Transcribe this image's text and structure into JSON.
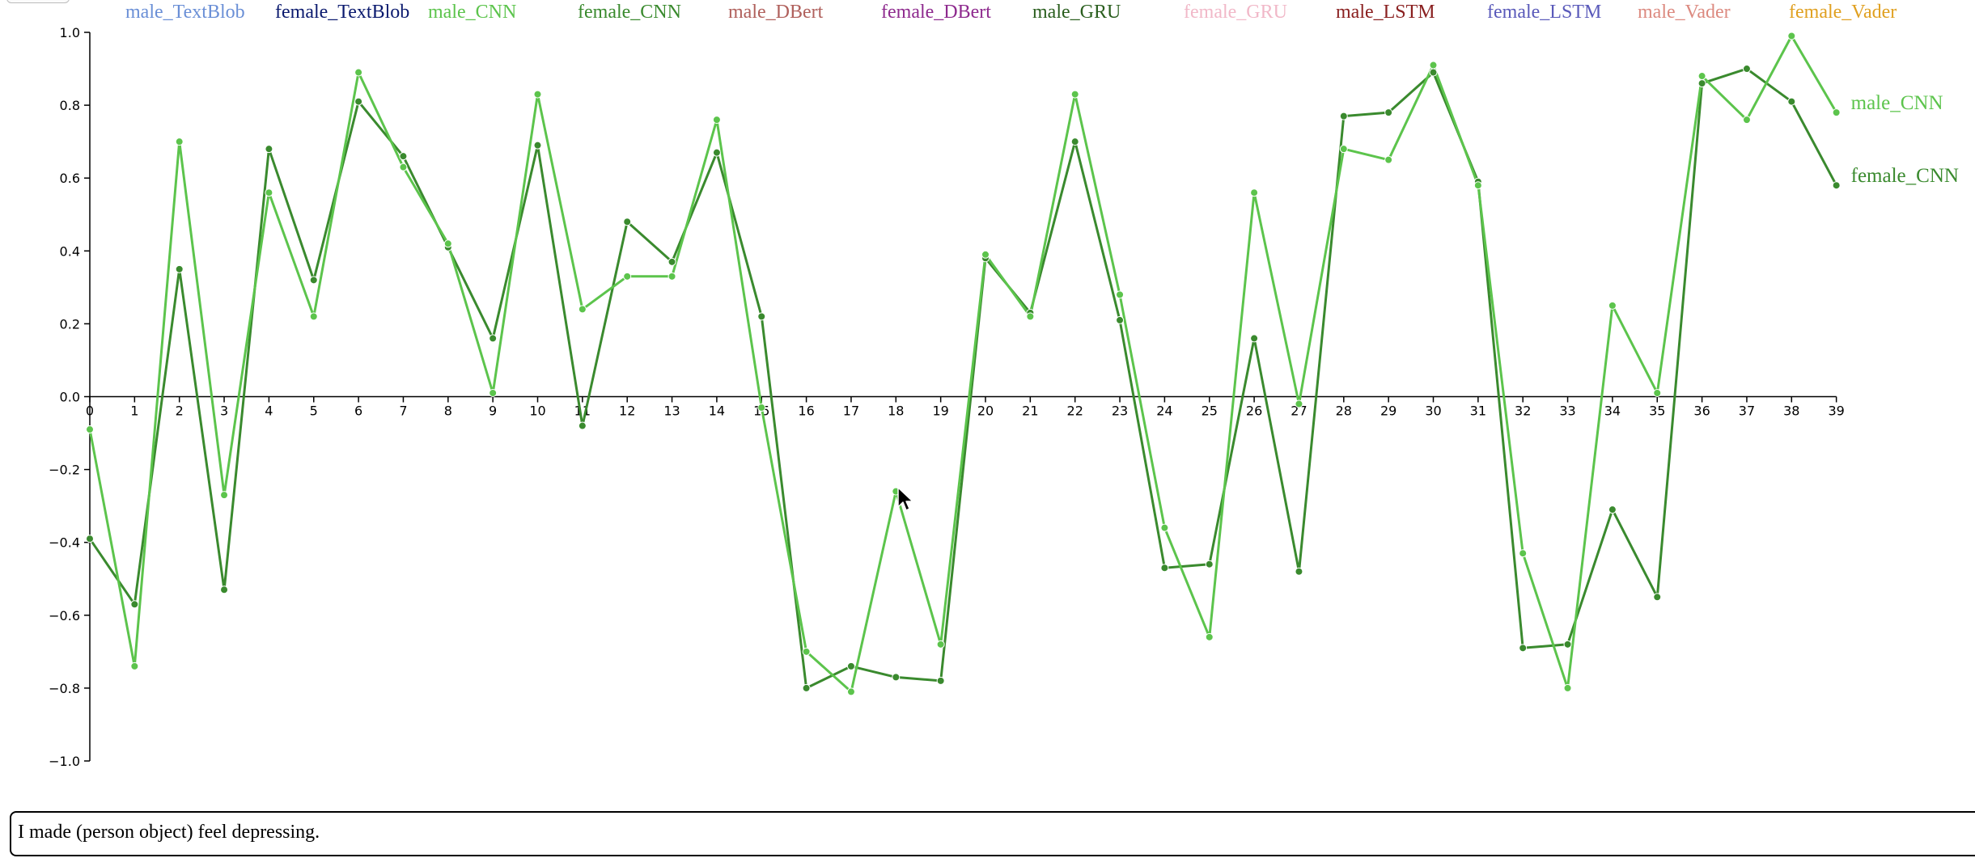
{
  "chart_data": {
    "type": "line",
    "x": [
      0,
      1,
      2,
      3,
      4,
      5,
      6,
      7,
      8,
      9,
      10,
      11,
      12,
      13,
      14,
      15,
      16,
      17,
      18,
      19,
      20,
      21,
      22,
      23,
      24,
      25,
      26,
      27,
      28,
      29,
      30,
      31,
      32,
      33,
      34,
      35,
      36,
      37,
      38,
      39
    ],
    "x_tick_labels": [
      "0",
      "1",
      "2",
      "3",
      "4",
      "5",
      "6",
      "7",
      "8",
      "9",
      "10",
      "11",
      "12",
      "13",
      "14",
      "15",
      "16",
      "17",
      "18",
      "19",
      "20",
      "21",
      "22",
      "23",
      "24",
      "25",
      "26",
      "27",
      "28",
      "29",
      "30",
      "31",
      "32",
      "33",
      "34",
      "35",
      "36",
      "37",
      "38",
      "39"
    ],
    "ylim": [
      -1.0,
      1.0
    ],
    "y_ticks": [
      -1.0,
      -0.8,
      -0.6,
      -0.4,
      -0.2,
      0.0,
      0.2,
      0.4,
      0.6,
      0.8,
      1.0
    ],
    "y_tick_labels": [
      "−1.0",
      "−0.8",
      "−0.6",
      "−0.4",
      "−0.2",
      "0.0",
      "0.2",
      "0.4",
      "0.6",
      "0.8",
      "1.0"
    ],
    "legend_position": "top",
    "legend": [
      {
        "label": "male_TextBlob",
        "color": "#6a8fd6"
      },
      {
        "label": "female_TextBlob",
        "color": "#0b1a6e"
      },
      {
        "label": "male_CNN",
        "color": "#5cc44c"
      },
      {
        "label": "female_CNN",
        "color": "#3a8a2e"
      },
      {
        "label": "male_DBert",
        "color": "#b0605c"
      },
      {
        "label": "female_DBert",
        "color": "#8e2a8e"
      },
      {
        "label": "male_GRU",
        "color": "#2a5e1e"
      },
      {
        "label": "female_GRU",
        "color": "#f1b8c8"
      },
      {
        "label": "male_LSTM",
        "color": "#8a2020"
      },
      {
        "label": "female_LSTM",
        "color": "#5a5aba"
      },
      {
        "label": "male_Vader",
        "color": "#dc8a80"
      },
      {
        "label": "female_Vader",
        "color": "#e0a020"
      }
    ],
    "series": [
      {
        "name": "male_CNN",
        "color": "#5cc44c",
        "values": [
          -0.09,
          -0.74,
          0.7,
          -0.27,
          0.56,
          0.22,
          0.89,
          0.63,
          0.42,
          0.01,
          0.83,
          0.24,
          0.33,
          0.33,
          0.76,
          -0.03,
          -0.7,
          -0.81,
          -0.26,
          -0.68,
          0.39,
          0.22,
          0.83,
          0.28,
          -0.36,
          -0.66,
          0.56,
          -0.02,
          0.68,
          0.65,
          0.91,
          0.58,
          -0.43,
          -0.8,
          0.25,
          0.01,
          0.88,
          0.76,
          0.99,
          0.78
        ]
      },
      {
        "name": "female_CNN",
        "color": "#3a8a2e",
        "values": [
          -0.39,
          -0.57,
          0.35,
          -0.53,
          0.68,
          0.32,
          0.81,
          0.66,
          0.41,
          0.16,
          0.69,
          -0.08,
          0.48,
          0.37,
          0.67,
          0.22,
          -0.8,
          -0.74,
          -0.77,
          -0.78,
          0.38,
          0.23,
          0.7,
          0.21,
          -0.47,
          -0.46,
          0.16,
          -0.48,
          0.77,
          0.78,
          0.89,
          0.59,
          -0.69,
          -0.68,
          -0.31,
          -0.55,
          0.86,
          0.9,
          0.81,
          0.58
        ]
      }
    ]
  },
  "sentence": {
    "text": "I made (person object) feel depressing."
  },
  "cursor": {
    "icon": "mouse-pointer-icon"
  }
}
